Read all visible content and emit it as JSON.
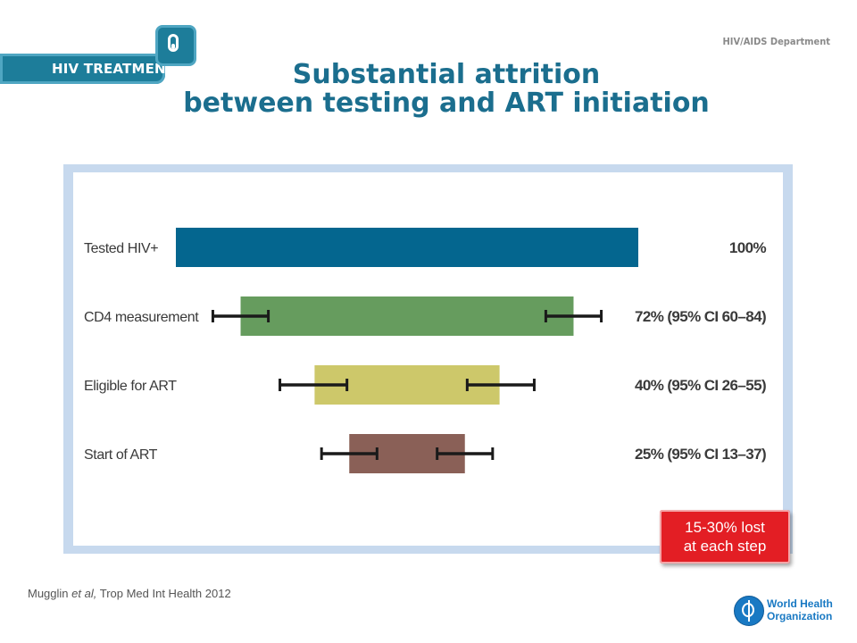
{
  "header": {
    "badge_label": "HIV TREATMENT",
    "department": "HIV/AIDS Department",
    "title_line1": "Substantial attrition",
    "title_line2": "between testing and ART initiation"
  },
  "callout": {
    "line1": "15-30% lost",
    "line2": "at each step"
  },
  "citation": {
    "authors": "Mugglin",
    "etal": "et al,",
    "source": "Trop Med Int Health 2012"
  },
  "footer": {
    "org_line1": "World Health",
    "org_line2": "Organization",
    "logo_icon": "who-emblem-icon"
  },
  "colors": {
    "accent": "#1b6e8e",
    "callout": "#e31e24",
    "frame": "#c7d9ee"
  },
  "chart_data": {
    "type": "bar",
    "orientation": "horizontal-centered",
    "categories": [
      "Tested HIV+",
      "CD4 measurement",
      "Eligible for ART",
      "Start of ART"
    ],
    "values": [
      100,
      72,
      40,
      25
    ],
    "ci": [
      null,
      [
        60,
        84
      ],
      [
        26,
        55
      ],
      [
        13,
        37
      ]
    ],
    "value_labels": [
      "100%",
      "72% (95% CI 60–84)",
      "40% (95% CI 26–55)",
      "25% (95% CI 13–37)"
    ],
    "bar_colors": [
      "#04668f",
      "#669c5e",
      "#cdc86a",
      "#8a6057"
    ],
    "xlim": [
      0,
      100
    ],
    "grid": false
  }
}
